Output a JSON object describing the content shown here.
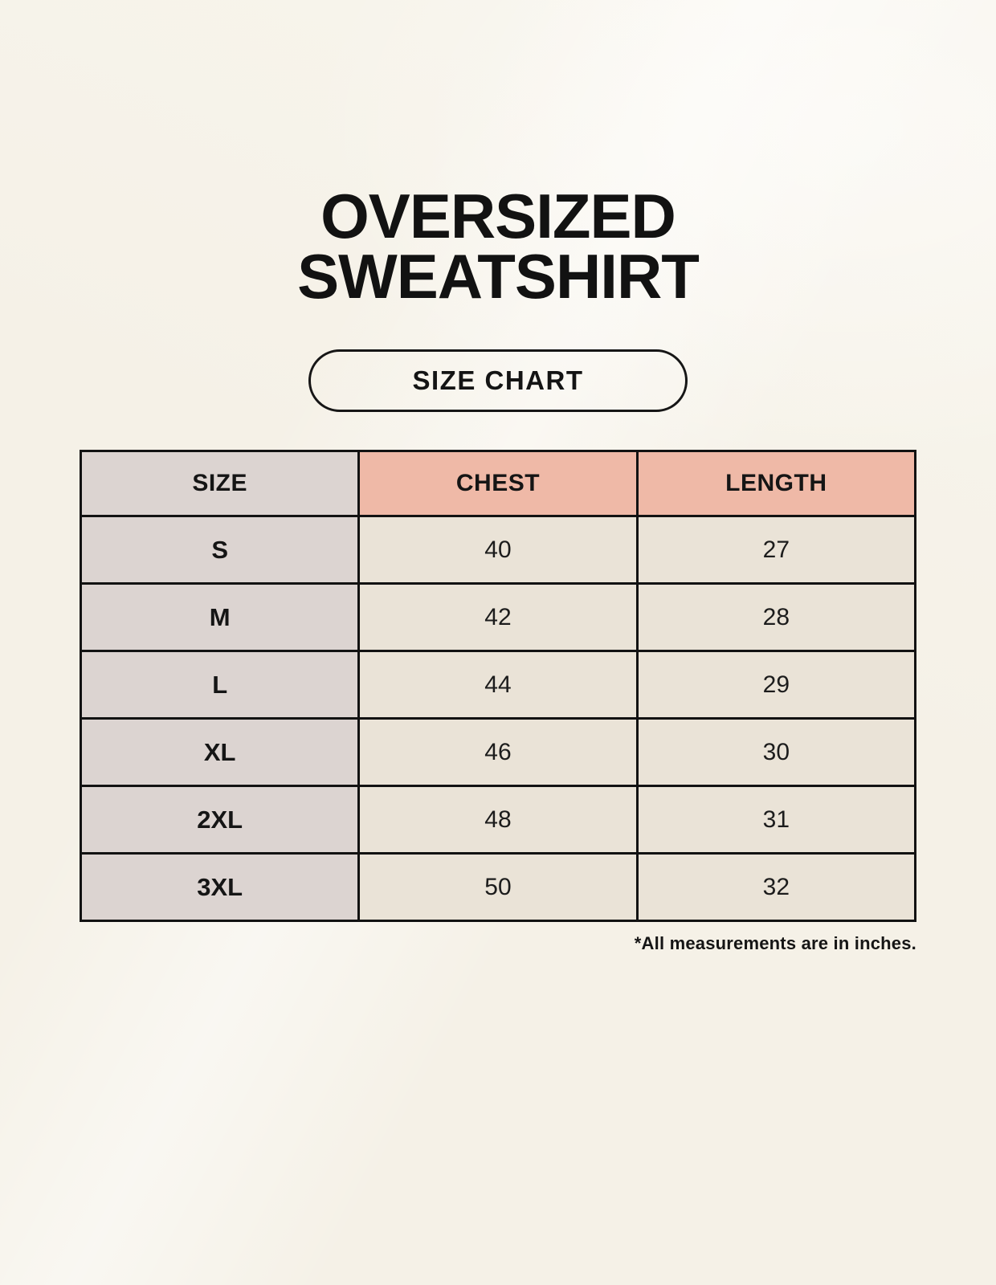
{
  "page": {
    "title_line1": "OVERSIZED",
    "title_line2": "SWEATSHIRT",
    "button_label": "SIZE CHART",
    "footnote": "*All measurements are in inches."
  },
  "table": {
    "headers": {
      "size": "SIZE",
      "chest": "CHEST",
      "length": "LENGTH"
    },
    "rows": [
      {
        "size": "S",
        "chest": "40",
        "length": "27"
      },
      {
        "size": "M",
        "chest": "42",
        "length": "28"
      },
      {
        "size": "L",
        "chest": "44",
        "length": "29"
      },
      {
        "size": "XL",
        "chest": "46",
        "length": "30"
      },
      {
        "size": "2XL",
        "chest": "48",
        "length": "31"
      },
      {
        "size": "3XL",
        "chest": "50",
        "length": "32"
      }
    ]
  },
  "chart_data": {
    "type": "table",
    "title": "OVERSIZED SWEATSHIRT SIZE CHART",
    "columns": [
      "SIZE",
      "CHEST",
      "LENGTH"
    ],
    "rows": [
      [
        "S",
        40,
        27
      ],
      [
        "M",
        42,
        28
      ],
      [
        "L",
        44,
        29
      ],
      [
        "XL",
        46,
        30
      ],
      [
        "2XL",
        48,
        31
      ],
      [
        "3XL",
        50,
        32
      ]
    ],
    "units": "inches"
  },
  "colors": {
    "background": "#f5f1e7",
    "header_accent_pink": "#efb9a7",
    "size_column_gray": "#dcd4d1",
    "cell_cream": "#eae3d7",
    "border_black": "#121212",
    "text_black": "#141414"
  }
}
